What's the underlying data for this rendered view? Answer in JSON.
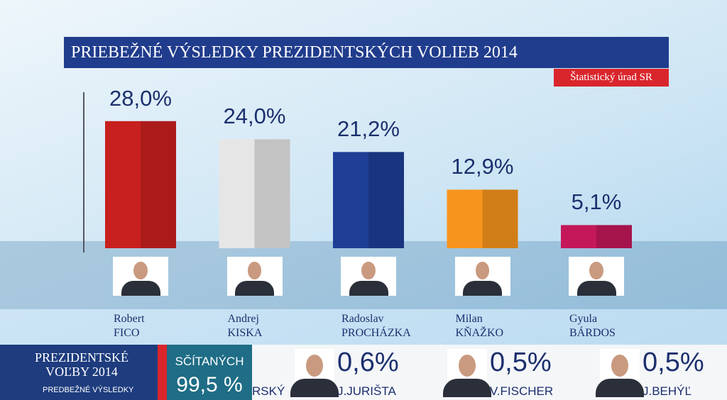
{
  "chart_data": {
    "type": "bar",
    "title": "PRIEBEŽNÉ VÝSLEDKY PREZIDENTSKÝCH VOLIEB 2014",
    "source": "Štatistický úrad SR",
    "categories": [
      "Robert FICO",
      "Andrej KISKA",
      "Radoslav PROCHÁZKA",
      "Milan KŇAŽKO",
      "Gyula BÁRDOS"
    ],
    "values": [
      28.0,
      24.0,
      21.2,
      12.9,
      5.1
    ],
    "value_labels": [
      "28,0%",
      "24,0%",
      "21,2%",
      "12,9%",
      "5,1%"
    ],
    "colors": [
      "#c8201e",
      "#e6e6e6",
      "#1f3f96",
      "#f7941d",
      "#c4185a"
    ]
  },
  "ticker": {
    "program": "PREZIDENTSKÉ VOĽBY 2014",
    "subtitle": "PREDBEŽNÉ VÝSLEDKY",
    "counted_label": "SČÍTANÝCH",
    "counted_value": "99,5 %",
    "partial_name": "RSKÝ",
    "results": [
      {
        "value": "0,6%",
        "name": "J.JURIŠTA"
      },
      {
        "value": "0,5%",
        "name": "V.FISCHER"
      },
      {
        "value": "0,5%",
        "name": "J.BEHÝĽ"
      }
    ]
  }
}
